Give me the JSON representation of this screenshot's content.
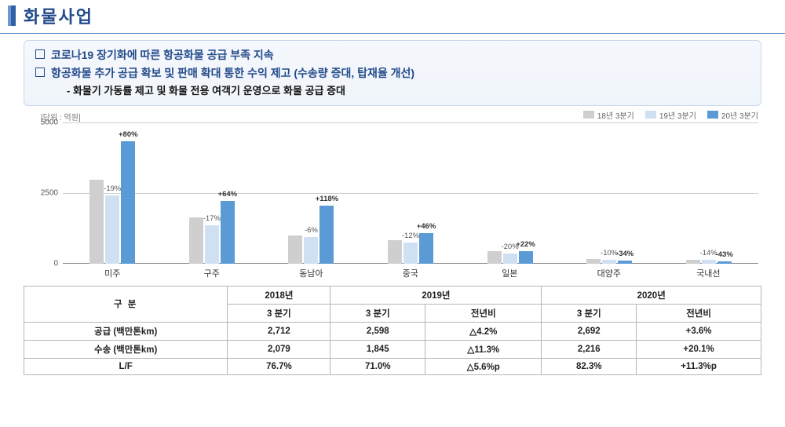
{
  "title": "화물사업",
  "summary": {
    "line1": "코로나19 장기화에 따른 항공화물 공급 부족 지속",
    "line2": "항공화물 추가 공급 확보 및 판매 확대 통한 수익 제고 (수송량 증대, 탑재율 개선)",
    "sub1": "- 화물기 가동률 제고 및 화물 전용 여객기 운영으로 화물 공급 증대"
  },
  "chart": {
    "unit_label": "[단위 : 억원]",
    "ymax": 5000,
    "yticks": [
      0,
      2500,
      5000
    ],
    "colors": {
      "y18": "#cfcfcf",
      "y19": "#cfe0f2",
      "y20": "#5a9bd5",
      "grid": "#d0d0d0",
      "axis": "#888888",
      "text": "#555555"
    },
    "legend": [
      {
        "label": "18년 3분기",
        "color": "#cfcfcf"
      },
      {
        "label": "19년 3분기",
        "color": "#cfe0f2"
      },
      {
        "label": "20년 3분기",
        "color": "#5a9bd5"
      }
    ],
    "categories": [
      "미주",
      "구주",
      "동남아",
      "중국",
      "일본",
      "대양주",
      "국내선"
    ],
    "series": {
      "y18": [
        2960,
        1620,
        995,
        830,
        430,
        150,
        130
      ],
      "y19": [
        2398,
        1345,
        935,
        730,
        344,
        135,
        112
      ],
      "y20": [
        4316,
        2206,
        2038,
        1066,
        420,
        89,
        64
      ]
    },
    "labels": {
      "l1": [
        "-19%",
        "-17%",
        "-6%",
        "-12%",
        "-20%",
        "-10%",
        "-14%"
      ],
      "l2": [
        "+80%",
        "+64%",
        "+118%",
        "+46%",
        "+22%",
        "-34%",
        "-43%"
      ]
    }
  },
  "table": {
    "header": {
      "col_group": "구        분",
      "y2018": "2018년",
      "y2019": "2019년",
      "y2020": "2020년",
      "q3": "3 분기",
      "yoy": "전년비"
    },
    "rows": [
      {
        "label": "공급 (백만톤km)",
        "v18": "2,712",
        "v19": "2,598",
        "d19": "△4.2%",
        "v20": "2,692",
        "d20": "+3.6%"
      },
      {
        "label": "수송 (백만톤km)",
        "v18": "2,079",
        "v19": "1,845",
        "d19": "△11.3%",
        "v20": "2,216",
        "d20": "+20.1%"
      },
      {
        "label": "L/F",
        "v18": "76.7%",
        "v19": "71.0%",
        "d19": "△5.6%p",
        "v20": "82.3%",
        "d20": "+11.3%p"
      }
    ]
  }
}
